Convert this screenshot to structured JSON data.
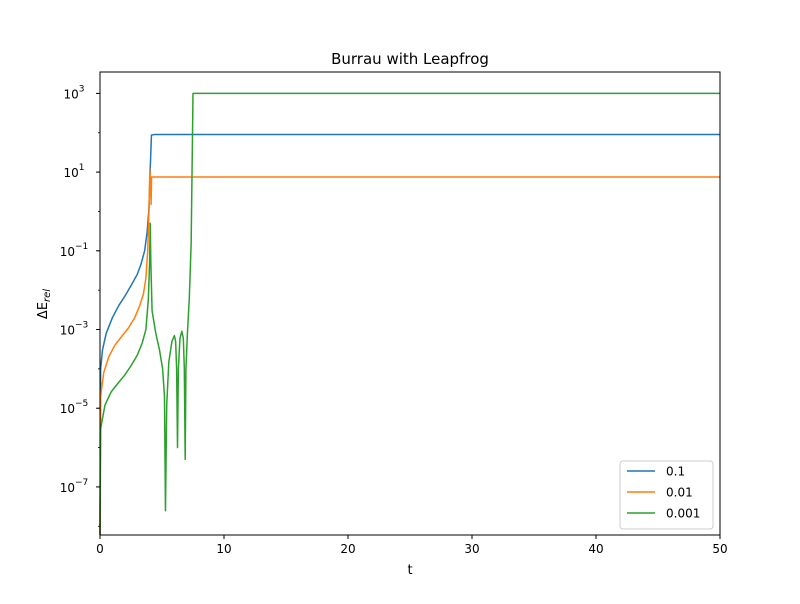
{
  "chart_data": {
    "type": "line",
    "title": "Burrau with Leapfrog",
    "xlabel": "t",
    "ylabel": "ΔE_rel",
    "xlim": [
      0,
      50
    ],
    "ylim": [
      6e-09,
      3500.0
    ],
    "yscale": "log",
    "grid": false,
    "legend_position": "lower-right",
    "x_ticks": [
      0,
      10,
      20,
      30,
      40,
      50
    ],
    "y_ticks": [
      {
        "value": 1e-07,
        "label_base": "10",
        "label_exp": "−7"
      },
      {
        "value": 1e-05,
        "label_base": "10",
        "label_exp": "−5"
      },
      {
        "value": 0.001,
        "label_base": "10",
        "label_exp": "−3"
      },
      {
        "value": 0.1,
        "label_base": "10",
        "label_exp": "−1"
      },
      {
        "value": 10.0,
        "label_base": "10",
        "label_exp": "1"
      },
      {
        "value": 1000.0,
        "label_base": "10",
        "label_exp": "3"
      }
    ],
    "series": [
      {
        "name": "0.1",
        "color": "#1f77b4",
        "points": [
          [
            0.0,
            6e-09
          ],
          [
            0.05,
            0.0001
          ],
          [
            0.2,
            0.0003
          ],
          [
            0.5,
            0.0008
          ],
          [
            1.0,
            0.002
          ],
          [
            1.5,
            0.004
          ],
          [
            2.0,
            0.007
          ],
          [
            2.5,
            0.013
          ],
          [
            3.0,
            0.025
          ],
          [
            3.3,
            0.045
          ],
          [
            3.6,
            0.1
          ],
          [
            3.8,
            0.3
          ],
          [
            3.95,
            1.2
          ],
          [
            4.05,
            12
          ],
          [
            4.15,
            88
          ],
          [
            4.4,
            90
          ],
          [
            50,
            90
          ]
        ]
      },
      {
        "name": "0.01",
        "color": "#ff7f0e",
        "points": [
          [
            0.0,
            6e-09
          ],
          [
            0.05,
            2e-05
          ],
          [
            0.3,
            8e-05
          ],
          [
            0.7,
            0.0002
          ],
          [
            1.2,
            0.0004
          ],
          [
            1.8,
            0.0007
          ],
          [
            2.3,
            0.0011
          ],
          [
            2.8,
            0.002
          ],
          [
            3.2,
            0.004
          ],
          [
            3.5,
            0.008
          ],
          [
            3.7,
            0.02
          ],
          [
            3.85,
            0.1
          ],
          [
            3.95,
            1.0
          ],
          [
            4.02,
            12
          ],
          [
            4.08,
            5
          ],
          [
            4.12,
            1.5
          ],
          [
            4.16,
            7.5
          ],
          [
            4.25,
            7.5
          ],
          [
            50,
            7.5
          ]
        ]
      },
      {
        "name": "0.001",
        "color": "#2ca02c",
        "points": [
          [
            0.0,
            6e-09
          ],
          [
            0.05,
            3e-06
          ],
          [
            0.4,
            1.2e-05
          ],
          [
            0.9,
            2.6e-05
          ],
          [
            1.5,
            4.5e-05
          ],
          [
            2.0,
            7e-05
          ],
          [
            2.5,
            0.00012
          ],
          [
            3.0,
            0.00022
          ],
          [
            3.4,
            0.00045
          ],
          [
            3.7,
            0.001
          ],
          [
            3.9,
            0.006
          ],
          [
            4.0,
            0.05
          ],
          [
            4.05,
            0.5
          ],
          [
            4.1,
            0.05
          ],
          [
            4.2,
            0.003
          ],
          [
            4.5,
            0.0008
          ],
          [
            4.8,
            0.0003
          ],
          [
            5.05,
            0.0001
          ],
          [
            5.2,
            2e-05
          ],
          [
            5.28,
            2.5e-08
          ],
          [
            5.38,
            1.2e-05
          ],
          [
            5.55,
            0.00015
          ],
          [
            5.8,
            0.0005
          ],
          [
            6.0,
            0.0007
          ],
          [
            6.1,
            0.0005
          ],
          [
            6.18,
            0.0001
          ],
          [
            6.25,
            1e-06
          ],
          [
            6.32,
            0.0001
          ],
          [
            6.45,
            0.0006
          ],
          [
            6.6,
            0.0009
          ],
          [
            6.72,
            0.0006
          ],
          [
            6.8,
            0.0001
          ],
          [
            6.87,
            5e-07
          ],
          [
            6.93,
            0.0001
          ],
          [
            7.05,
            0.0008
          ],
          [
            7.2,
            0.006
          ],
          [
            7.35,
            0.15
          ],
          [
            7.45,
            50
          ],
          [
            7.5,
            1000
          ],
          [
            50,
            1000
          ]
        ]
      }
    ]
  }
}
